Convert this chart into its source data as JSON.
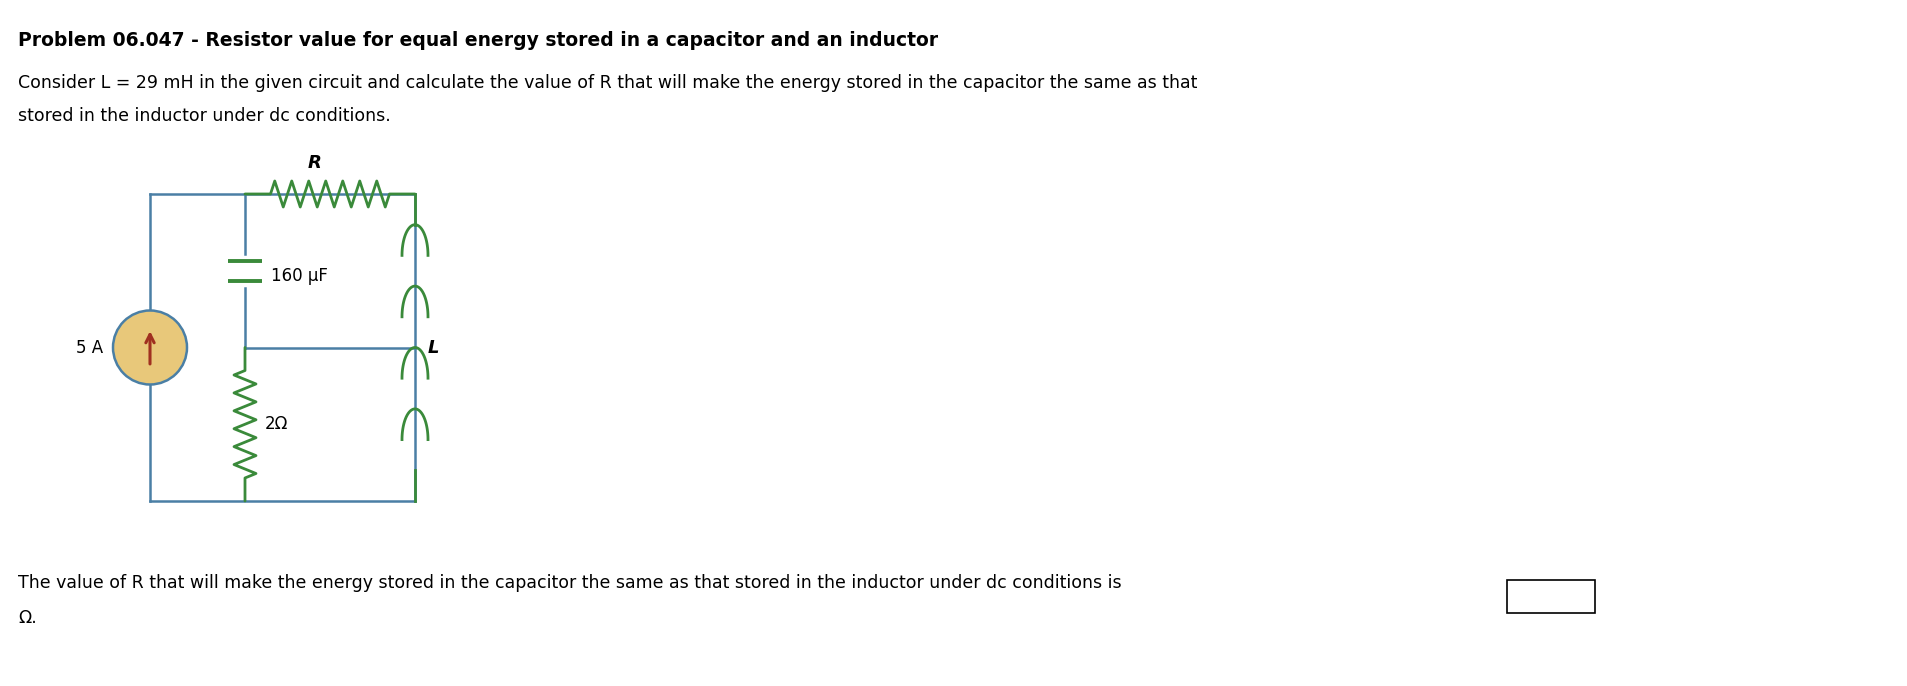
{
  "title": "Problem 06.047 - Resistor value for equal energy stored in a capacitor and an inductor",
  "description_line1": "Consider L = 29 mH in the given circuit and calculate the value of R that will make the energy stored in the capacitor the same as that",
  "description_line2": "stored in the inductor under dc conditions.",
  "footer_line1": "The value of R that will make the energy stored in the capacitor the same as that stored in the inductor under dc conditions is",
  "footer_line2": "Ω.",
  "wire_color": "#4a7fa5",
  "component_color": "#3a8a3a",
  "current_source_color_outer": "#e8c87a",
  "current_source_color_arrow": "#a03020",
  "bg_color": "#ffffff",
  "title_fontsize": 13.5,
  "body_fontsize": 12.5,
  "cs_label": "5 A",
  "res1_label": "2Ω",
  "res2_label": "R",
  "cap_label": "160 μF",
  "ind_label": "L"
}
